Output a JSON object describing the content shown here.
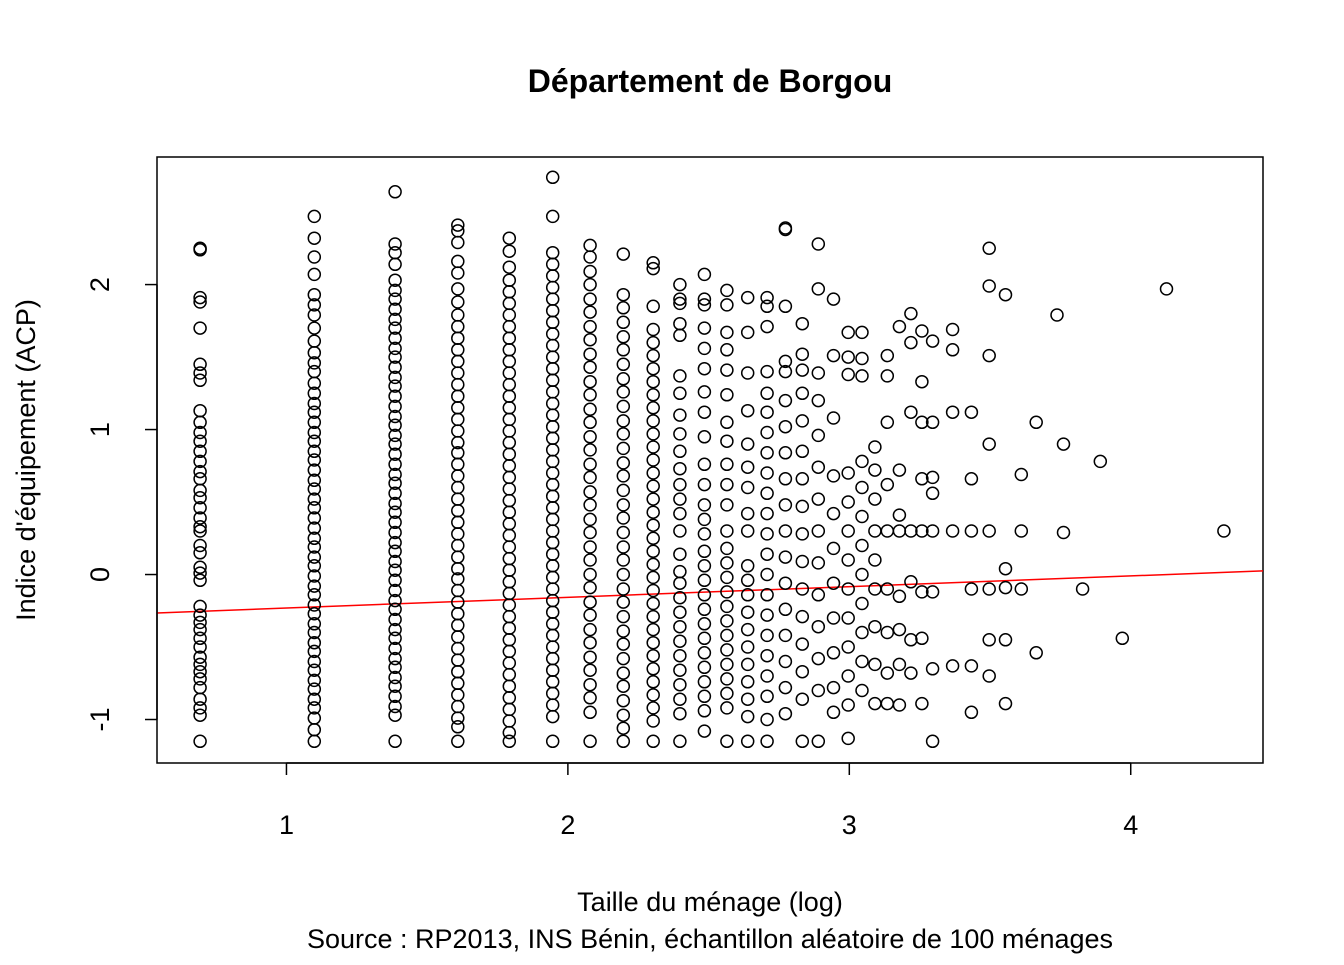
{
  "chart_data": {
    "type": "scatter",
    "title": "Département de Borgou",
    "xlabel": "Taille du ménage (log)",
    "caption": "Source : RP2013, INS Bénin, échantillon aléatoire de 100 ménages",
    "ylabel": "Indice d'équipement (ACP)",
    "xlim": [
      0.54,
      4.47
    ],
    "ylim": [
      -1.3,
      2.88
    ],
    "x_ticks": [
      1,
      2,
      3,
      4
    ],
    "y_ticks": [
      -1,
      0,
      1,
      2
    ],
    "x_tick_labels": [
      "1",
      "2",
      "3",
      "4"
    ],
    "y_tick_labels": [
      "-1",
      "0",
      "1",
      "2"
    ],
    "grid": false,
    "point_style": "open-circle",
    "point_color": "#000000",
    "trend_line": {
      "color": "#ff0000",
      "x": [
        0.54,
        4.47
      ],
      "y": [
        -0.265,
        0.025
      ]
    },
    "columns": [
      {
        "x": 0.693,
        "y": [
          2.25,
          2.24,
          1.91,
          1.88,
          1.7,
          1.45,
          1.39,
          1.34,
          1.13,
          1.05,
          0.98,
          0.92,
          0.85,
          0.78,
          0.71,
          0.66,
          0.58,
          0.53,
          0.46,
          0.39,
          0.33,
          0.3,
          0.2,
          0.15,
          0.05,
          0.01,
          -0.04,
          -0.22,
          -0.28,
          -0.33,
          -0.38,
          -0.44,
          -0.5,
          -0.57,
          -0.62,
          -0.67,
          -0.72,
          -0.78,
          -0.86,
          -0.92,
          -0.97,
          -1.15
        ]
      },
      {
        "x": 1.099,
        "y": [
          2.47,
          2.32,
          2.19,
          2.07,
          1.93,
          1.86,
          1.79,
          1.7,
          1.61,
          1.53,
          1.46,
          1.4,
          1.32,
          1.25,
          1.18,
          1.12,
          1.05,
          0.98,
          0.92,
          0.85,
          0.79,
          0.72,
          0.65,
          0.59,
          0.52,
          0.46,
          0.39,
          0.32,
          0.25,
          0.19,
          0.12,
          0.06,
          -0.01,
          -0.08,
          -0.14,
          -0.21,
          -0.27,
          -0.34,
          -0.4,
          -0.47,
          -0.53,
          -0.6,
          -0.66,
          -0.73,
          -0.79,
          -0.86,
          -0.92,
          -0.99,
          -1.07,
          -1.15
        ]
      },
      {
        "x": 1.386,
        "y": [
          2.64,
          2.28,
          2.22,
          2.14,
          2.03,
          1.96,
          1.9,
          1.83,
          1.76,
          1.7,
          1.63,
          1.56,
          1.5,
          1.43,
          1.36,
          1.3,
          1.23,
          1.16,
          1.09,
          1.03,
          0.96,
          0.9,
          0.83,
          0.76,
          0.69,
          0.63,
          0.56,
          0.49,
          0.43,
          0.36,
          0.29,
          0.22,
          0.16,
          0.09,
          0.03,
          -0.04,
          -0.11,
          -0.18,
          -0.24,
          -0.31,
          -0.38,
          -0.44,
          -0.51,
          -0.58,
          -0.64,
          -0.71,
          -0.77,
          -0.84,
          -0.91,
          -0.97,
          -1.15
        ]
      },
      {
        "x": 1.609,
        "y": [
          2.41,
          2.37,
          2.29,
          2.16,
          2.08,
          1.97,
          1.88,
          1.79,
          1.71,
          1.63,
          1.55,
          1.47,
          1.39,
          1.31,
          1.23,
          1.15,
          1.07,
          0.99,
          0.91,
          0.84,
          0.76,
          0.68,
          0.6,
          0.52,
          0.44,
          0.36,
          0.28,
          0.2,
          0.12,
          0.04,
          -0.03,
          -0.11,
          -0.19,
          -0.27,
          -0.35,
          -0.43,
          -0.51,
          -0.59,
          -0.67,
          -0.75,
          -0.83,
          -0.91,
          -0.99,
          -1.05,
          -1.15
        ]
      },
      {
        "x": 1.792,
        "y": [
          2.32,
          2.23,
          2.12,
          2.03,
          1.95,
          1.87,
          1.79,
          1.71,
          1.63,
          1.55,
          1.47,
          1.39,
          1.31,
          1.23,
          1.15,
          1.07,
          0.99,
          0.91,
          0.83,
          0.75,
          0.67,
          0.59,
          0.51,
          0.43,
          0.35,
          0.27,
          0.19,
          0.11,
          0.03,
          -0.05,
          -0.13,
          -0.21,
          -0.29,
          -0.37,
          -0.45,
          -0.53,
          -0.61,
          -0.69,
          -0.77,
          -0.85,
          -0.93,
          -1.01,
          -1.09,
          -1.15
        ]
      },
      {
        "x": 1.946,
        "y": [
          2.74,
          2.47,
          2.22,
          2.14,
          2.06,
          1.98,
          1.9,
          1.82,
          1.74,
          1.66,
          1.58,
          1.5,
          1.42,
          1.34,
          1.26,
          1.18,
          1.1,
          1.02,
          0.94,
          0.86,
          0.78,
          0.7,
          0.62,
          0.54,
          0.46,
          0.38,
          0.3,
          0.22,
          0.14,
          0.06,
          -0.02,
          -0.1,
          -0.18,
          -0.26,
          -0.34,
          -0.42,
          -0.5,
          -0.58,
          -0.66,
          -0.74,
          -0.82,
          -0.9,
          -0.98,
          -1.15
        ]
      },
      {
        "x": 2.079,
        "y": [
          2.27,
          2.19,
          2.09,
          2.0,
          1.9,
          1.81,
          1.71,
          1.62,
          1.52,
          1.43,
          1.33,
          1.24,
          1.14,
          1.05,
          0.95,
          0.86,
          0.76,
          0.67,
          0.57,
          0.48,
          0.38,
          0.29,
          0.19,
          0.1,
          0.0,
          -0.09,
          -0.19,
          -0.28,
          -0.38,
          -0.47,
          -0.57,
          -0.66,
          -0.76,
          -0.85,
          -0.95,
          -1.15
        ]
      },
      {
        "x": 2.197,
        "y": [
          2.21,
          1.93,
          1.84,
          1.74,
          1.64,
          1.55,
          1.45,
          1.35,
          1.26,
          1.16,
          1.06,
          0.97,
          0.87,
          0.77,
          0.68,
          0.58,
          0.48,
          0.39,
          0.29,
          0.19,
          0.1,
          0.0,
          -0.1,
          -0.19,
          -0.29,
          -0.39,
          -0.48,
          -0.58,
          -0.68,
          -0.77,
          -0.87,
          -0.97,
          -1.06,
          -1.15
        ]
      },
      {
        "x": 2.303,
        "y": [
          2.15,
          2.11,
          1.85,
          1.69,
          1.6,
          1.51,
          1.42,
          1.33,
          1.24,
          1.15,
          1.06,
          0.97,
          0.88,
          0.79,
          0.7,
          0.61,
          0.52,
          0.43,
          0.34,
          0.25,
          0.16,
          0.07,
          -0.02,
          -0.11,
          -0.2,
          -0.29,
          -0.38,
          -0.47,
          -0.56,
          -0.65,
          -0.74,
          -0.83,
          -0.92,
          -1.01,
          -1.15
        ]
      },
      {
        "x": 2.398,
        "y": [
          2.0,
          1.9,
          1.87,
          1.73,
          1.65,
          1.37,
          1.25,
          1.1,
          0.97,
          0.85,
          0.73,
          0.62,
          0.52,
          0.42,
          0.3,
          0.14,
          0.02,
          -0.06,
          -0.16,
          -0.26,
          -0.36,
          -0.46,
          -0.56,
          -0.66,
          -0.76,
          -0.86,
          -0.96,
          -1.15
        ]
      },
      {
        "x": 2.485,
        "y": [
          2.07,
          1.9,
          1.86,
          1.7,
          1.56,
          1.42,
          1.26,
          1.12,
          0.95,
          0.76,
          0.62,
          0.48,
          0.38,
          0.28,
          0.16,
          0.06,
          -0.04,
          -0.14,
          -0.24,
          -0.34,
          -0.44,
          -0.54,
          -0.64,
          -0.74,
          -0.84,
          -0.94,
          -1.08
        ]
      },
      {
        "x": 2.565,
        "y": [
          1.96,
          1.86,
          1.67,
          1.55,
          1.41,
          1.24,
          1.05,
          0.92,
          0.76,
          0.62,
          0.48,
          0.3,
          0.18,
          0.08,
          -0.02,
          -0.12,
          -0.22,
          -0.32,
          -0.42,
          -0.52,
          -0.62,
          -0.72,
          -0.82,
          -0.92,
          -1.15
        ]
      },
      {
        "x": 2.639,
        "y": [
          1.91,
          1.67,
          1.39,
          1.13,
          0.9,
          0.74,
          0.6,
          0.42,
          0.3,
          0.06,
          -0.04,
          -0.14,
          -0.26,
          -0.38,
          -0.5,
          -0.62,
          -0.74,
          -0.86,
          -0.98,
          -1.15
        ]
      },
      {
        "x": 2.708,
        "y": [
          1.91,
          1.85,
          1.71,
          1.4,
          1.25,
          1.12,
          0.98,
          0.84,
          0.7,
          0.56,
          0.42,
          0.28,
          0.14,
          0.0,
          -0.14,
          -0.28,
          -0.42,
          -0.56,
          -0.7,
          -0.84,
          -1.0,
          -1.15
        ]
      },
      {
        "x": 2.773,
        "y": [
          2.39,
          2.38,
          1.85,
          1.47,
          1.4,
          1.2,
          1.02,
          0.84,
          0.66,
          0.48,
          0.3,
          0.12,
          -0.06,
          -0.24,
          -0.42,
          -0.6,
          -0.78,
          -0.96
        ]
      },
      {
        "x": 2.833,
        "y": [
          1.73,
          1.52,
          1.41,
          1.25,
          1.06,
          0.85,
          0.66,
          0.47,
          0.28,
          0.09,
          -0.1,
          -0.29,
          -0.48,
          -0.67,
          -0.86,
          -1.15
        ]
      },
      {
        "x": 2.89,
        "y": [
          2.28,
          1.97,
          1.39,
          1.2,
          0.96,
          0.74,
          0.52,
          0.3,
          0.08,
          -0.14,
          -0.36,
          -0.58,
          -0.8,
          -1.15
        ]
      },
      {
        "x": 2.944,
        "y": [
          1.9,
          1.51,
          1.08,
          0.68,
          0.42,
          0.18,
          -0.06,
          -0.3,
          -0.54,
          -0.78,
          -0.95
        ]
      },
      {
        "x": 2.996,
        "y": [
          1.67,
          1.5,
          1.38,
          0.7,
          0.5,
          0.3,
          0.1,
          -0.1,
          -0.3,
          -0.5,
          -0.7,
          -0.9,
          -1.13
        ]
      },
      {
        "x": 3.045,
        "y": [
          1.67,
          1.49,
          1.37,
          0.78,
          0.6,
          0.4,
          0.2,
          0.0,
          -0.2,
          -0.4,
          -0.6,
          -0.8
        ]
      },
      {
        "x": 3.091,
        "y": [
          0.88,
          0.72,
          0.52,
          0.3,
          0.1,
          -0.1,
          -0.36,
          -0.62,
          -0.89
        ]
      },
      {
        "x": 3.135,
        "y": [
          1.51,
          1.37,
          1.05,
          0.62,
          0.3,
          -0.1,
          -0.4,
          -0.68,
          -0.89
        ]
      },
      {
        "x": 3.178,
        "y": [
          1.71,
          0.72,
          0.41,
          0.3,
          -0.15,
          -0.38,
          -0.62,
          -0.9
        ]
      },
      {
        "x": 3.219,
        "y": [
          1.8,
          1.6,
          1.12,
          0.3,
          -0.05,
          -0.45,
          -0.68
        ]
      },
      {
        "x": 3.258,
        "y": [
          1.68,
          1.33,
          1.05,
          0.66,
          0.3,
          -0.12,
          -0.44,
          -0.89
        ]
      },
      {
        "x": 3.296,
        "y": [
          1.61,
          1.05,
          0.67,
          0.56,
          0.3,
          -0.12,
          -0.65,
          -1.15
        ]
      },
      {
        "x": 3.367,
        "y": [
          1.69,
          1.55,
          1.12,
          0.3,
          -0.63
        ]
      },
      {
        "x": 3.434,
        "y": [
          1.12,
          0.66,
          0.3,
          -0.1,
          -0.63,
          -0.95
        ]
      },
      {
        "x": 3.497,
        "y": [
          2.25,
          1.99,
          1.51,
          0.9,
          0.3,
          -0.1,
          -0.45,
          -0.7
        ]
      },
      {
        "x": 3.555,
        "y": [
          1.93,
          0.04,
          -0.09,
          -0.45,
          -0.89
        ]
      },
      {
        "x": 3.611,
        "y": [
          0.69,
          0.3,
          -0.1
        ]
      },
      {
        "x": 3.664,
        "y": [
          1.05,
          -0.54
        ]
      },
      {
        "x": 3.738,
        "y": [
          1.79
        ]
      },
      {
        "x": 3.761,
        "y": [
          0.9,
          0.29
        ]
      },
      {
        "x": 3.829,
        "y": [
          -0.1
        ]
      },
      {
        "x": 3.892,
        "y": [
          0.78
        ]
      },
      {
        "x": 3.97,
        "y": [
          -0.44
        ]
      },
      {
        "x": 4.127,
        "y": [
          1.97
        ]
      },
      {
        "x": 4.331,
        "y": [
          0.3
        ]
      }
    ]
  }
}
